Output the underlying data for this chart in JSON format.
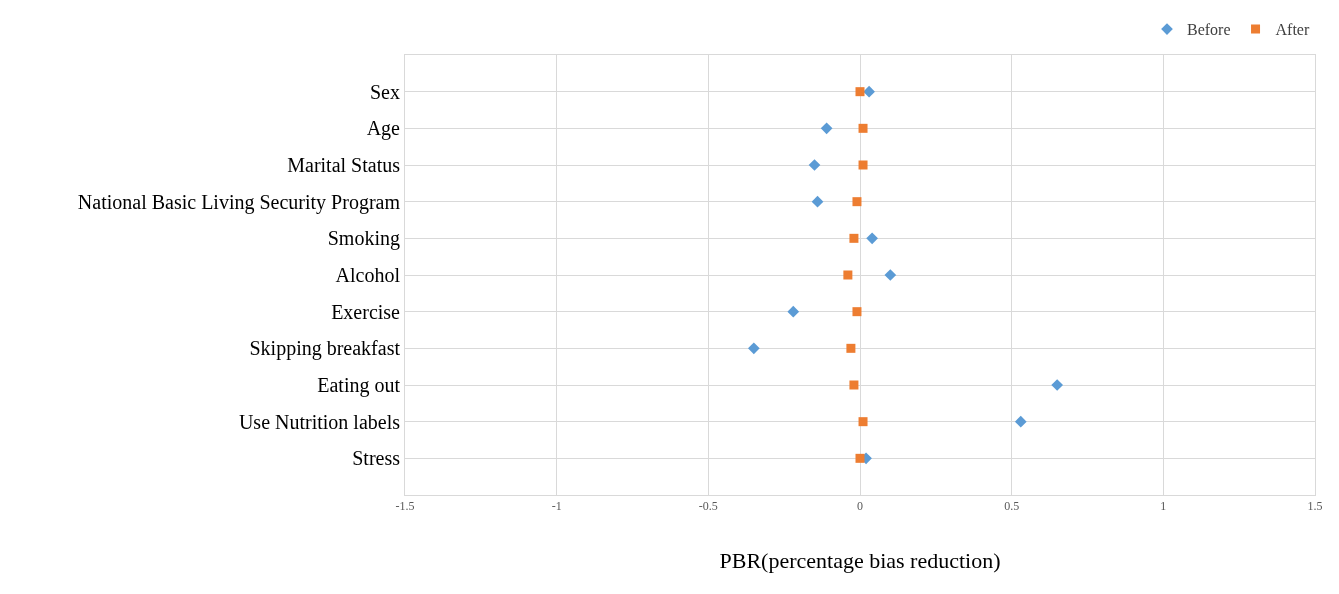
{
  "chart_data": {
    "type": "scatter",
    "orientation": "horizontal",
    "xlabel": "PBR(percentage bias reduction)",
    "categories": [
      "Sex",
      "Age",
      "Marital Status",
      "National Basic Living Security Program",
      "Smoking",
      "Alcohol",
      "Exercise",
      "Skipping breakfast",
      "Eating out",
      "Use Nutrition labels",
      "Stress"
    ],
    "series": [
      {
        "name": "Before",
        "color": "#5b9bd5",
        "marker": "diamond",
        "values": [
          0.03,
          -0.11,
          -0.15,
          -0.14,
          0.04,
          0.1,
          -0.22,
          -0.35,
          0.65,
          0.53,
          0.02
        ]
      },
      {
        "name": "After",
        "color": "#ed7d31",
        "marker": "square",
        "values": [
          0,
          0.01,
          0.01,
          -0.01,
          -0.02,
          -0.04,
          -0.01,
          -0.03,
          -0.02,
          0.01,
          0
        ]
      }
    ],
    "xlim": [
      -1.5,
      1.5
    ],
    "xticks": [
      -1.5,
      -1,
      -0.5,
      0,
      0.5,
      1,
      1.5
    ],
    "grid": true,
    "legend": "top right"
  }
}
